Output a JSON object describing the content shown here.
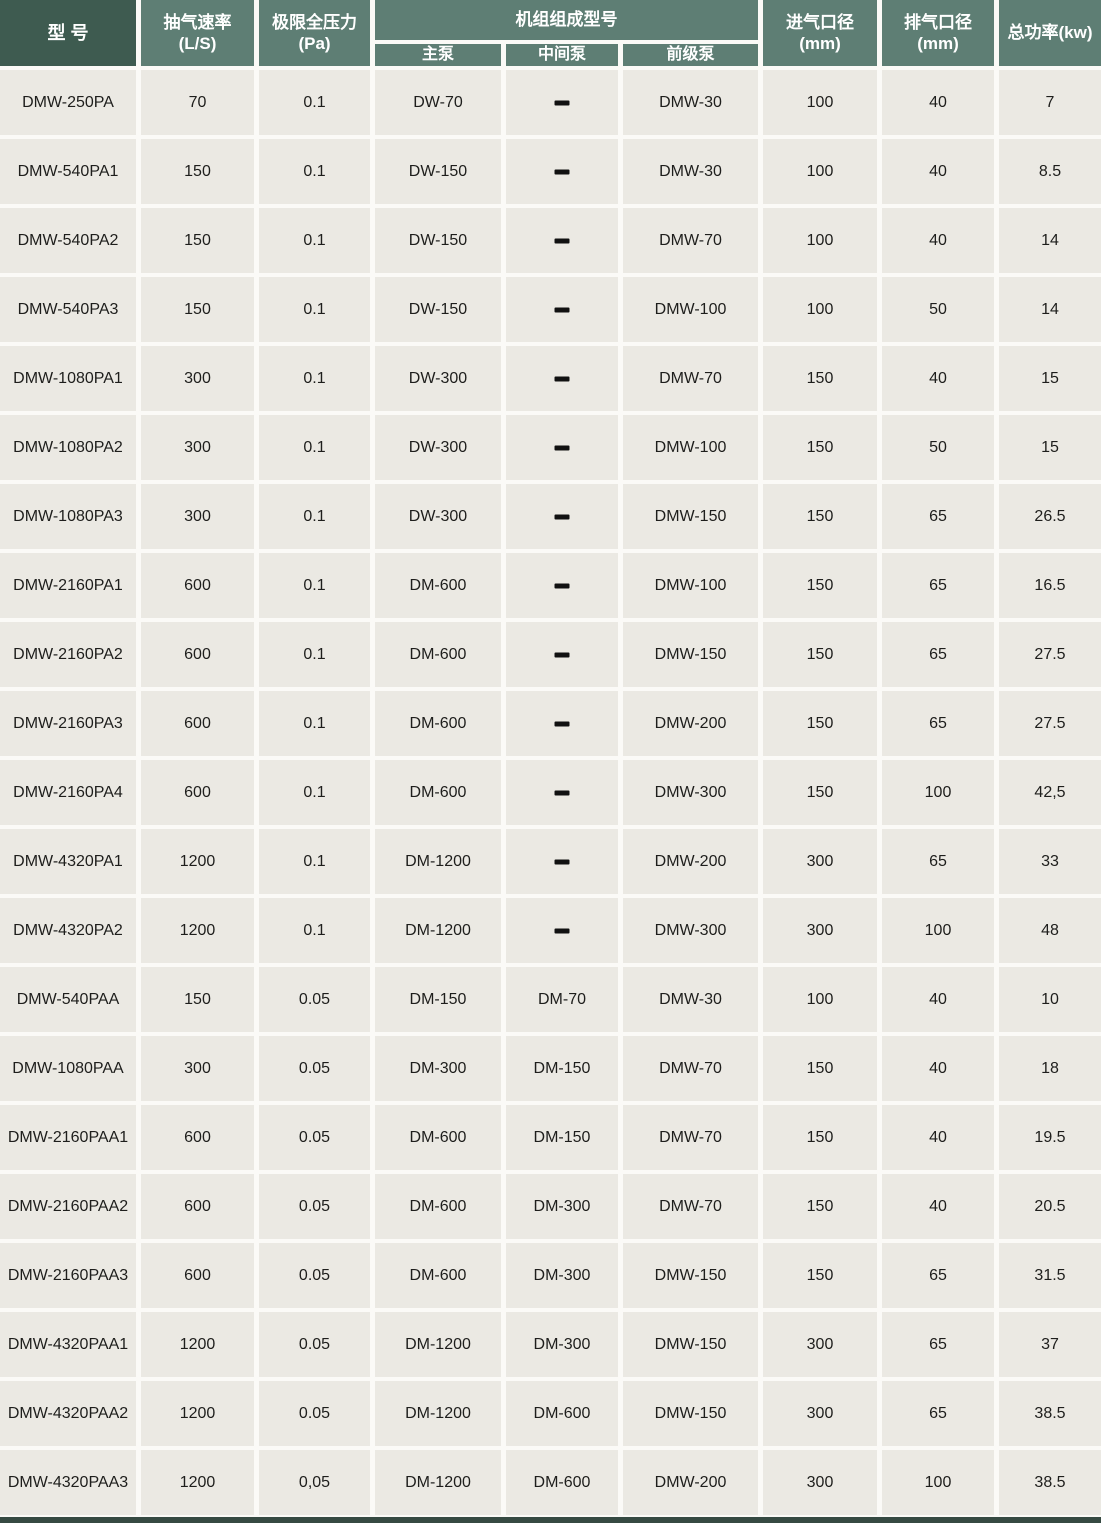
{
  "colors": {
    "header_dark": "#3e5b50",
    "header_green": "#5e7e74",
    "cell_bg": "#ebe9e3",
    "text_dark": "#1e1e1c",
    "footer_bar": "#364a42",
    "gap_white": "#ffffff"
  },
  "chart_data": {
    "type": "table",
    "header": {
      "model": "型 号",
      "pumping_speed": "抽气速率\n(L/S)",
      "ultimate_pressure": "极限全压力\n(Pa)",
      "unit_composition": "机组组成型号",
      "main_pump": "主泵",
      "middle_pump": "中间泵",
      "backing_pump": "前级泵",
      "inlet_diameter": "进气口径\n(mm)",
      "outlet_diameter": "排气口径\n(mm)",
      "total_power": "总功率(kw)"
    },
    "rows": [
      [
        "DMW-250PA",
        "70",
        "0.1",
        "DW-70",
        "-",
        "DMW-30",
        "100",
        "40",
        "7"
      ],
      [
        "DMW-540PA1",
        "150",
        "0.1",
        "DW-150",
        "-",
        "DMW-30",
        "100",
        "40",
        "8.5"
      ],
      [
        "DMW-540PA2",
        "150",
        "0.1",
        "DW-150",
        "-",
        "DMW-70",
        "100",
        "40",
        "14"
      ],
      [
        "DMW-540PA3",
        "150",
        "0.1",
        "DW-150",
        "-",
        "DMW-100",
        "100",
        "50",
        "14"
      ],
      [
        "DMW-1080PA1",
        "300",
        "0.1",
        "DW-300",
        "-",
        "DMW-70",
        "150",
        "40",
        "15"
      ],
      [
        "DMW-1080PA2",
        "300",
        "0.1",
        "DW-300",
        "-",
        "DMW-100",
        "150",
        "50",
        "15"
      ],
      [
        "DMW-1080PA3",
        "300",
        "0.1",
        "DW-300",
        "-",
        "DMW-150",
        "150",
        "65",
        "26.5"
      ],
      [
        "DMW-2160PA1",
        "600",
        "0.1",
        "DM-600",
        "-",
        "DMW-100",
        "150",
        "65",
        "16.5"
      ],
      [
        "DMW-2160PA2",
        "600",
        "0.1",
        "DM-600",
        "-",
        "DMW-150",
        "150",
        "65",
        "27.5"
      ],
      [
        "DMW-2160PA3",
        "600",
        "0.1",
        "DM-600",
        "-",
        "DMW-200",
        "150",
        "65",
        "27.5"
      ],
      [
        "DMW-2160PA4",
        "600",
        "0.1",
        "DM-600",
        "-",
        "DMW-300",
        "150",
        "100",
        "42,5"
      ],
      [
        "DMW-4320PA1",
        "1200",
        "0.1",
        "DM-1200",
        "-",
        "DMW-200",
        "300",
        "65",
        "33"
      ],
      [
        "DMW-4320PA2",
        "1200",
        "0.1",
        "DM-1200",
        "-",
        "DMW-300",
        "300",
        "100",
        "48"
      ],
      [
        "DMW-540PAA",
        "150",
        "0.05",
        "DM-150",
        "DM-70",
        "DMW-30",
        "100",
        "40",
        "10"
      ],
      [
        "DMW-1080PAA",
        "300",
        "0.05",
        "DM-300",
        "DM-150",
        "DMW-70",
        "150",
        "40",
        "18"
      ],
      [
        "DMW-2160PAA1",
        "600",
        "0.05",
        "DM-600",
        "DM-150",
        "DMW-70",
        "150",
        "40",
        "19.5"
      ],
      [
        "DMW-2160PAA2",
        "600",
        "0.05",
        "DM-600",
        "DM-300",
        "DMW-70",
        "150",
        "40",
        "20.5"
      ],
      [
        "DMW-2160PAA3",
        "600",
        "0.05",
        "DM-600",
        "DM-300",
        "DMW-150",
        "150",
        "65",
        "31.5"
      ],
      [
        "DMW-4320PAA1",
        "1200",
        "0.05",
        "DM-1200",
        "DM-300",
        "DMW-150",
        "300",
        "65",
        "37"
      ],
      [
        "DMW-4320PAA2",
        "1200",
        "0.05",
        "DM-1200",
        "DM-600",
        "DMW-150",
        "300",
        "65",
        "38.5"
      ],
      [
        "DMW-4320PAA3",
        "1200",
        "0,05",
        "DM-1200",
        "DM-600",
        "DMW-200",
        "300",
        "100",
        "38.5"
      ]
    ]
  }
}
